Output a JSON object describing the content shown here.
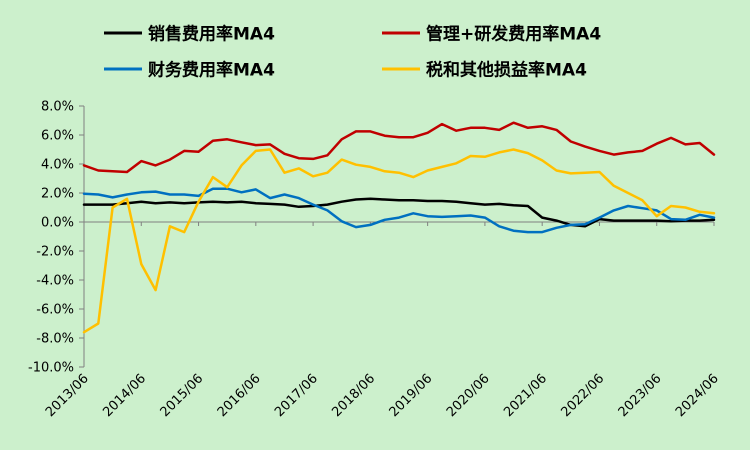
{
  "chart_data": {
    "type": "line",
    "title": "",
    "xlabel": "",
    "ylabel": "",
    "ylim": [
      -10,
      8
    ],
    "yticks": [
      8,
      6,
      4,
      2,
      0,
      -2,
      -4,
      -6,
      -8,
      -10
    ],
    "ytick_labels": [
      "8.0%",
      "6.0%",
      "4.0%",
      "2.0%",
      "0.0%",
      "-2.0%",
      "-4.0%",
      "-6.0%",
      "-8.0%",
      "-10.0%"
    ],
    "xtick_labels": [
      "2013/06",
      "2014/06",
      "2015/06",
      "2016/06",
      "2017/06",
      "2018/06",
      "2019/06",
      "2020/06",
      "2021/06",
      "2022/06",
      "2023/06",
      "2024/06"
    ],
    "x": [
      "2013/06",
      "2013/09",
      "2013/12",
      "2014/03",
      "2014/06",
      "2014/09",
      "2014/12",
      "2015/03",
      "2015/06",
      "2015/09",
      "2015/12",
      "2016/03",
      "2016/06",
      "2016/09",
      "2016/12",
      "2017/03",
      "2017/06",
      "2017/09",
      "2017/12",
      "2018/03",
      "2018/06",
      "2018/09",
      "2018/12",
      "2019/03",
      "2019/06",
      "2019/09",
      "2019/12",
      "2020/03",
      "2020/06",
      "2020/09",
      "2020/12",
      "2021/03",
      "2021/06",
      "2021/09",
      "2021/12",
      "2022/03",
      "2022/06",
      "2022/09",
      "2022/12",
      "2023/03",
      "2023/06",
      "2023/09",
      "2023/12",
      "2024/03",
      "2024/06"
    ],
    "legend_position": "top",
    "grid": false,
    "series": [
      {
        "name": "销售费用率MA4",
        "color": "#000000",
        "values": [
          1.2,
          1.2,
          1.2,
          1.3,
          1.4,
          1.3,
          1.35,
          1.3,
          1.35,
          1.4,
          1.35,
          1.4,
          1.3,
          1.25,
          1.2,
          1.05,
          1.1,
          1.2,
          1.4,
          1.55,
          1.6,
          1.55,
          1.5,
          1.5,
          1.45,
          1.45,
          1.4,
          1.3,
          1.2,
          1.25,
          1.15,
          1.1,
          0.3,
          0.1,
          -0.2,
          -0.3,
          0.2,
          0.1,
          0.1,
          0.1,
          0.1,
          0.05,
          0.1,
          0.1,
          0.15
        ]
      },
      {
        "name": "管理+研发费用率MA4",
        "color": "#c00000",
        "values": [
          3.9,
          3.55,
          3.5,
          3.45,
          4.2,
          3.9,
          4.3,
          4.9,
          4.85,
          5.6,
          5.7,
          5.5,
          5.3,
          5.35,
          4.7,
          4.4,
          4.35,
          4.6,
          5.7,
          6.25,
          6.25,
          5.95,
          5.85,
          5.85,
          6.15,
          6.75,
          6.3,
          6.5,
          6.5,
          6.35,
          6.85,
          6.5,
          6.6,
          6.35,
          5.55,
          5.2,
          4.9,
          4.65,
          4.8,
          4.9,
          5.4,
          5.8,
          5.35,
          5.45,
          4.65
        ]
      },
      {
        "name": "财务费用率MA4",
        "color": "#0070c0",
        "values": [
          1.95,
          1.9,
          1.7,
          1.9,
          2.05,
          2.1,
          1.9,
          1.9,
          1.8,
          2.3,
          2.3,
          2.05,
          2.25,
          1.65,
          1.9,
          1.65,
          1.2,
          0.8,
          0.05,
          -0.35,
          -0.2,
          0.15,
          0.3,
          0.6,
          0.4,
          0.35,
          0.4,
          0.45,
          0.3,
          -0.3,
          -0.6,
          -0.7,
          -0.7,
          -0.4,
          -0.2,
          -0.15,
          0.3,
          0.8,
          1.1,
          0.95,
          0.8,
          0.2,
          0.15,
          0.5,
          0.3
        ]
      },
      {
        "name": "税和其他损益率MA4",
        "color": "#ffc000",
        "values": [
          -7.6,
          -7.0,
          1.0,
          1.6,
          -2.9,
          -4.7,
          -0.3,
          -0.7,
          1.4,
          3.1,
          2.4,
          3.9,
          4.9,
          5.0,
          3.4,
          3.7,
          3.15,
          3.4,
          4.3,
          3.95,
          3.8,
          3.5,
          3.4,
          3.1,
          3.55,
          3.8,
          4.05,
          4.55,
          4.5,
          4.8,
          5.0,
          4.75,
          4.25,
          3.55,
          3.35,
          3.4,
          3.45,
          2.5,
          2.0,
          1.5,
          0.4,
          1.1,
          1.0,
          0.7,
          0.6
        ]
      }
    ]
  }
}
